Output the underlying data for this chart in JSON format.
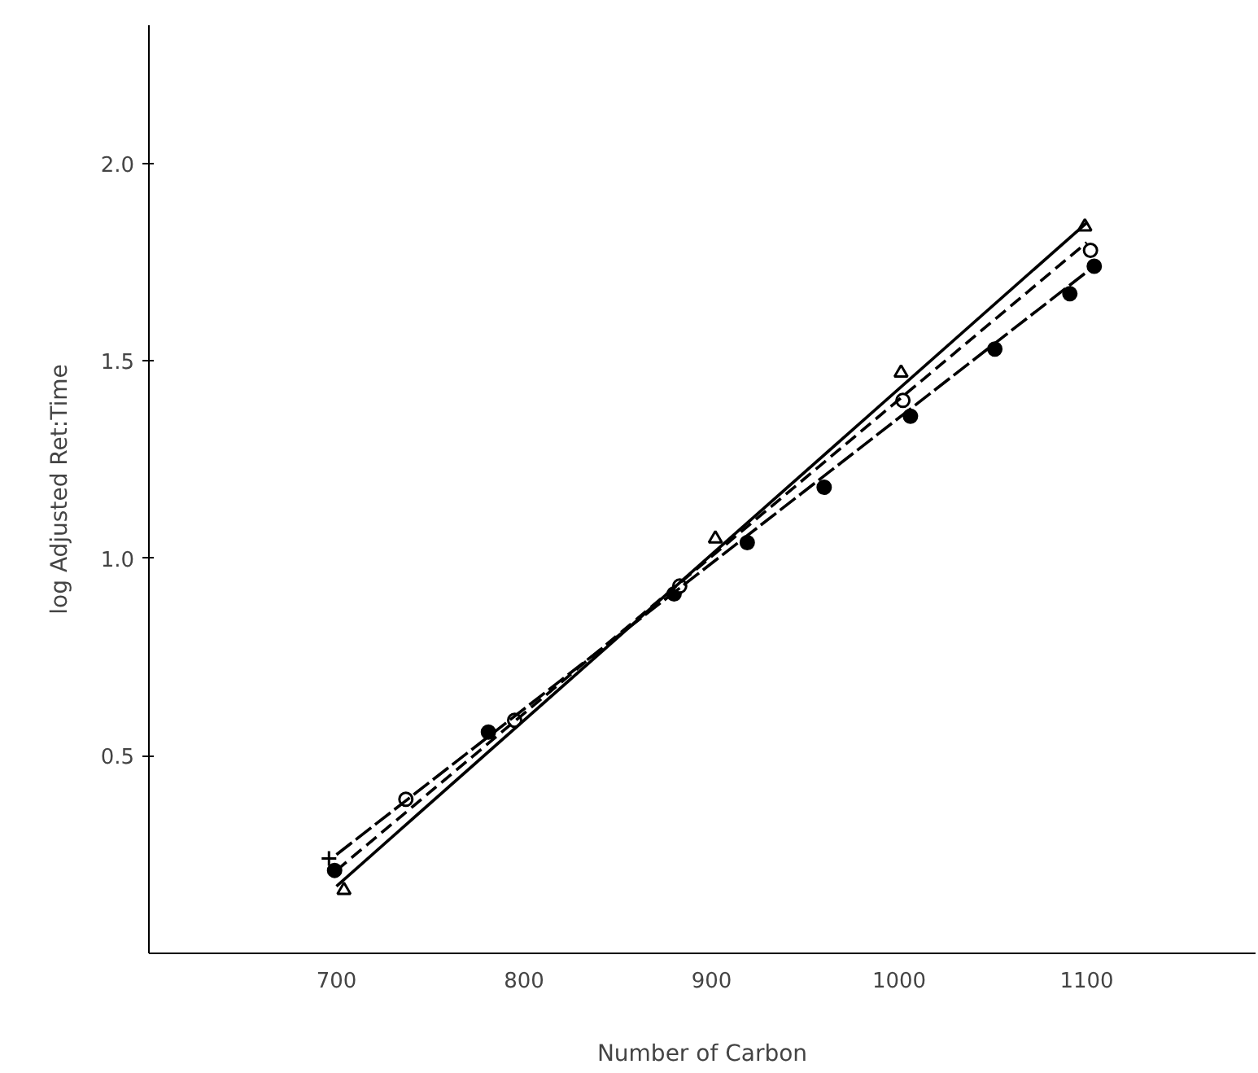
{
  "chart_data": {
    "type": "scatter",
    "xlabel": "Number of Carbon",
    "ylabel": "log Adjusted Ret:Time",
    "xlim": [
      600,
      1190
    ],
    "ylim": [
      0,
      2.35
    ],
    "xticks": [
      700,
      800,
      900,
      1000,
      1100
    ],
    "yticks": [
      0.5,
      {
        "value": 1.0,
        "label": "1.0"
      },
      1.5,
      {
        "value": 2.0,
        "label": "2.0"
      }
    ],
    "grid": false,
    "series": [
      {
        "marker": "triangle_open",
        "color": "#000000",
        "x": [
          704,
          902,
          1001,
          1099
        ],
        "values": [
          0.16,
          1.05,
          1.47,
          1.84
        ]
      },
      {
        "marker": "circle",
        "color": "#000000",
        "x": [
          699,
          781,
          880,
          919,
          960,
          1006,
          1051,
          1091,
          1104
        ],
        "values": [
          0.21,
          0.56,
          0.91,
          1.04,
          1.18,
          1.36,
          1.53,
          1.67,
          1.74
        ]
      },
      {
        "marker": "circle_open",
        "color": "#000000",
        "x": [
          737,
          795,
          883,
          1002,
          1102
        ],
        "values": [
          0.39,
          0.59,
          0.93,
          1.4,
          1.78
        ]
      },
      {
        "marker": "cross",
        "color": "#000000",
        "x": [
          696
        ],
        "values": [
          0.24
        ]
      },
      {
        "type": "line",
        "line_style": "solid",
        "color": "#000000",
        "x": [
          700,
          1100
        ],
        "values": [
          0.17,
          1.85
        ]
      },
      {
        "type": "line",
        "line_style": "dashed",
        "color": "#000000",
        "x": [
          700,
          1100
        ],
        "values": [
          0.21,
          1.8
        ]
      },
      {
        "type": "line",
        "line_style": "dashdot",
        "color": "#000000",
        "x": [
          700,
          1104
        ],
        "values": [
          0.25,
          1.74
        ]
      }
    ]
  }
}
